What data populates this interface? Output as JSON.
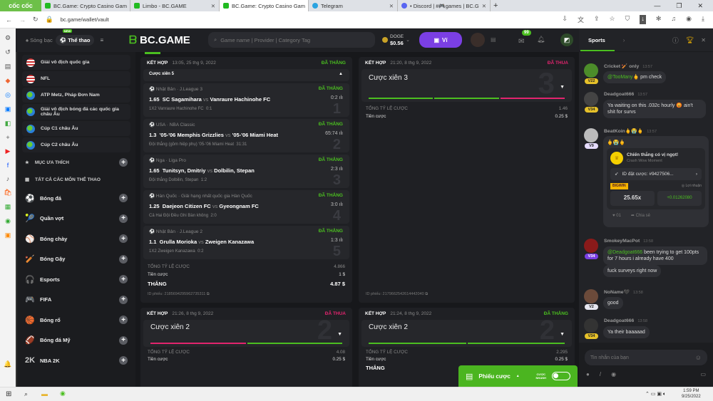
{
  "browser": {
    "brand": "cốc cốc",
    "tabs": [
      {
        "title": "BC.Game: Crypto Casino Gam",
        "active": false
      },
      {
        "title": "Limbo - BC.GAME",
        "active": false
      },
      {
        "title": "BC.Game: Crypto Casino Gam",
        "active": true
      },
      {
        "title": "Telegram",
        "active": false
      },
      {
        "title": "• Discord | #🎮games | BC.G",
        "active": false
      }
    ],
    "url": "bc.game/wallet/vault"
  },
  "header": {
    "casino_label": "Sòng bạc",
    "sports_label": "Thể thao",
    "new_badge": "NEW",
    "logo": "BC.GAME",
    "search_placeholder": "Game name | Provider | Category Tag",
    "currency": "DOGE",
    "balance": "$0.56",
    "wallet_label": "Ví",
    "notif_count": "99"
  },
  "sidebar": {
    "leagues": [
      {
        "name": "Giải vô địch quốc gia",
        "flag": "us"
      },
      {
        "name": "NFL",
        "flag": "us"
      },
      {
        "name": "ATP Metz, Pháp Đơn Nam",
        "flag": "globe"
      },
      {
        "name": "Giải vô địch bóng đá các quốc gia châu Âu",
        "flag": "globe"
      },
      {
        "name": "Cúp C1 châu Âu",
        "flag": "globe"
      },
      {
        "name": "Cúp C2 châu Âu",
        "flag": "globe"
      }
    ],
    "favorites_label": "MỤC ƯA THÍCH",
    "all_sports_label": "TẤT CẢ CÁC MÔN THỂ THAO",
    "sports": [
      {
        "name": "Bóng đá",
        "icon": "soccer-icon"
      },
      {
        "name": "Quần vợt",
        "icon": "tennis-icon"
      },
      {
        "name": "Bóng chày",
        "icon": "baseball-icon"
      },
      {
        "name": "Bóng Gậy",
        "icon": "cricket-icon"
      },
      {
        "name": "Esports",
        "icon": "headset-icon"
      },
      {
        "name": "FIFA",
        "icon": "fifa-icon"
      },
      {
        "name": "Bóng rổ",
        "icon": "basketball-icon"
      },
      {
        "name": "Bóng đá Mỹ",
        "icon": "football-helmet-icon"
      },
      {
        "name": "NBA 2K",
        "icon": "nba2k-icon"
      }
    ]
  },
  "bets": [
    {
      "type": "KẾT HỢP",
      "date": "13:05, 25 thg 9, 2022",
      "status": "ĐÃ THẮNG",
      "parlay": "Cược xiên 5",
      "legs": [
        {
          "country": "Nhật Bản",
          "league": "J.League 3",
          "odds": "1.65",
          "home": "SC Sagamihara",
          "away": "Vanraure Hachinohe FC",
          "pick": "1X2 Vanraure Hachinohe FC",
          "pick_score": "0:1",
          "score": "0:2",
          "status": "ĐÃ THẮNG",
          "num": "1"
        },
        {
          "country": "USA",
          "league": "NBA Classic",
          "odds": "1.3",
          "home": "'05-'06 Memphis Grizzlies",
          "away": "'05-'06 Miami Heat",
          "pick": "Đội thắng (gồm hiệp phụ) '05-'06 Miami Heat",
          "pick_score": "31:31",
          "score": "65:74",
          "status": "ĐÃ THẮNG",
          "num": "2"
        },
        {
          "country": "Nga",
          "league": "Liga Pro",
          "odds": "1.65",
          "home": "Tunitsyn, Dmitriy",
          "away": "Dolbilin, Stepan",
          "pick": "Đội thắng Dolbilin, Stepan",
          "pick_score": "1:2",
          "score": "2:3",
          "status": "ĐÃ THẮNG",
          "num": "3"
        },
        {
          "country": "Hàn Quốc",
          "league": "Giải hạng nhất quốc gia Hàn Quốc",
          "odds": "1.25",
          "home": "Daejeon Citizen FC",
          "away": "Gyeongnam FC",
          "pick": "Cả Hai Đội Đều Ghi Bàn không",
          "pick_score": "2:0",
          "score": "3:0",
          "status": "ĐÃ THẮNG",
          "num": "4"
        },
        {
          "country": "Nhật Bản",
          "league": "J.League 2",
          "odds": "1.1",
          "home": "Grulla Morioka",
          "away": "Zweigen Kanazawa",
          "pick": "1X2 Zweigen Kanazawa",
          "pick_score": "0:2",
          "score": "1:3",
          "status": "ĐÃ THẮNG",
          "num": "5"
        }
      ],
      "total_odds_label": "TỔNG TỶ LỆ CƯỢC",
      "total_odds": "4.866",
      "stake_label": "Tiền cược",
      "stake": "1 $",
      "win_label": "THẮNG",
      "win": "4.87 $",
      "ticket_id": "ID phiếu: 2185694295962735311"
    },
    {
      "type": "KẾT HỢP",
      "date": "21:20, 8 thg 9, 2022",
      "status": "ĐÃ THUA",
      "parlay": "Cược xiên 3",
      "num": "3",
      "legs_result": [
        "win",
        "win",
        "lose"
      ],
      "total_odds_label": "TỔNG TỶ LỆ CƯỢC",
      "total_odds": "1.46",
      "stake_label": "Tiền cược",
      "stake": "0.25 $",
      "ticket_id": "ID phiếu: 2179662542614442040"
    },
    {
      "type": "KẾT HỢP",
      "date": "21:26, 8 thg 9, 2022",
      "status": "ĐÃ THUA",
      "parlay": "Cược xiên 2",
      "num": "2",
      "legs_result": [
        "lose",
        "win"
      ],
      "total_odds_label": "TỔNG TỶ LỆ CƯỢC",
      "total_odds": "4.08",
      "stake_label": "Tiền cược",
      "stake": "0.25 $"
    },
    {
      "type": "KẾT HỢP",
      "date": "21:24, 8 thg 9, 2022",
      "status": "ĐÃ THẮNG",
      "parlay": "Cược xiên 2",
      "num": "2",
      "legs_result": [
        "win",
        "win"
      ],
      "total_odds_label": "TỔNG TỶ LỆ CƯỢC",
      "total_odds": "2.295",
      "stake_label": "Tiền cược",
      "stake": "0.25 $",
      "win_label": "THẮNG"
    }
  ],
  "betslip": {
    "label": "Phiếu cược",
    "quick_label_1": "CƯỢC",
    "quick_label_2": "NHANH"
  },
  "colors": {
    "win": "#4bbf20",
    "lose": "#e2246e",
    "accent": "#7b3fe4"
  },
  "chat": {
    "tab": "Sports",
    "messages": [
      {
        "user": "Cricket 🏏 only",
        "time": "13:57",
        "level": "V22",
        "mention": "@TooMany🖕",
        "text": " pm check"
      },
      {
        "user": "Deadgoat666",
        "time": "13:57",
        "level": "V34",
        "text": "Ya waiting on this .032c hourly 😡 ain't shit for survs"
      },
      {
        "user": "BeatKoin🖕😭🖕",
        "time": "13:57",
        "level": "V9",
        "text": "🖕😭🖕"
      },
      {
        "user": "SmokeyMacPot",
        "time": "13:58",
        "level": "V34",
        "mention": "@Deadgoat666",
        "text": " been trying to get 100pts for 7 hours i already have 400",
        "text2": "fuck surveys right now"
      },
      {
        "user": "NoName🖤",
        "time": "13:58",
        "level": "V2",
        "text": "good"
      },
      {
        "user": "Deadgoat666",
        "time": "13:58",
        "level": "V34",
        "text": "Ya their baaaaad"
      }
    ],
    "share_card": {
      "title": "Chiến thắng có vị ngọt!",
      "subtitle": "Crash Wow Moment",
      "bet_id": "ID đặt cược: #9427506...",
      "badge": "BIGWIN",
      "profit_label": "Lợi nhuận",
      "multiplier": "25.65x",
      "profit": "+0.01262080",
      "likes": "01",
      "share": "Chia sẻ"
    },
    "input_placeholder": "Tin nhắn của bạn"
  },
  "taskbar": {
    "time": "1:59 PM",
    "date": "9/25/2022"
  }
}
